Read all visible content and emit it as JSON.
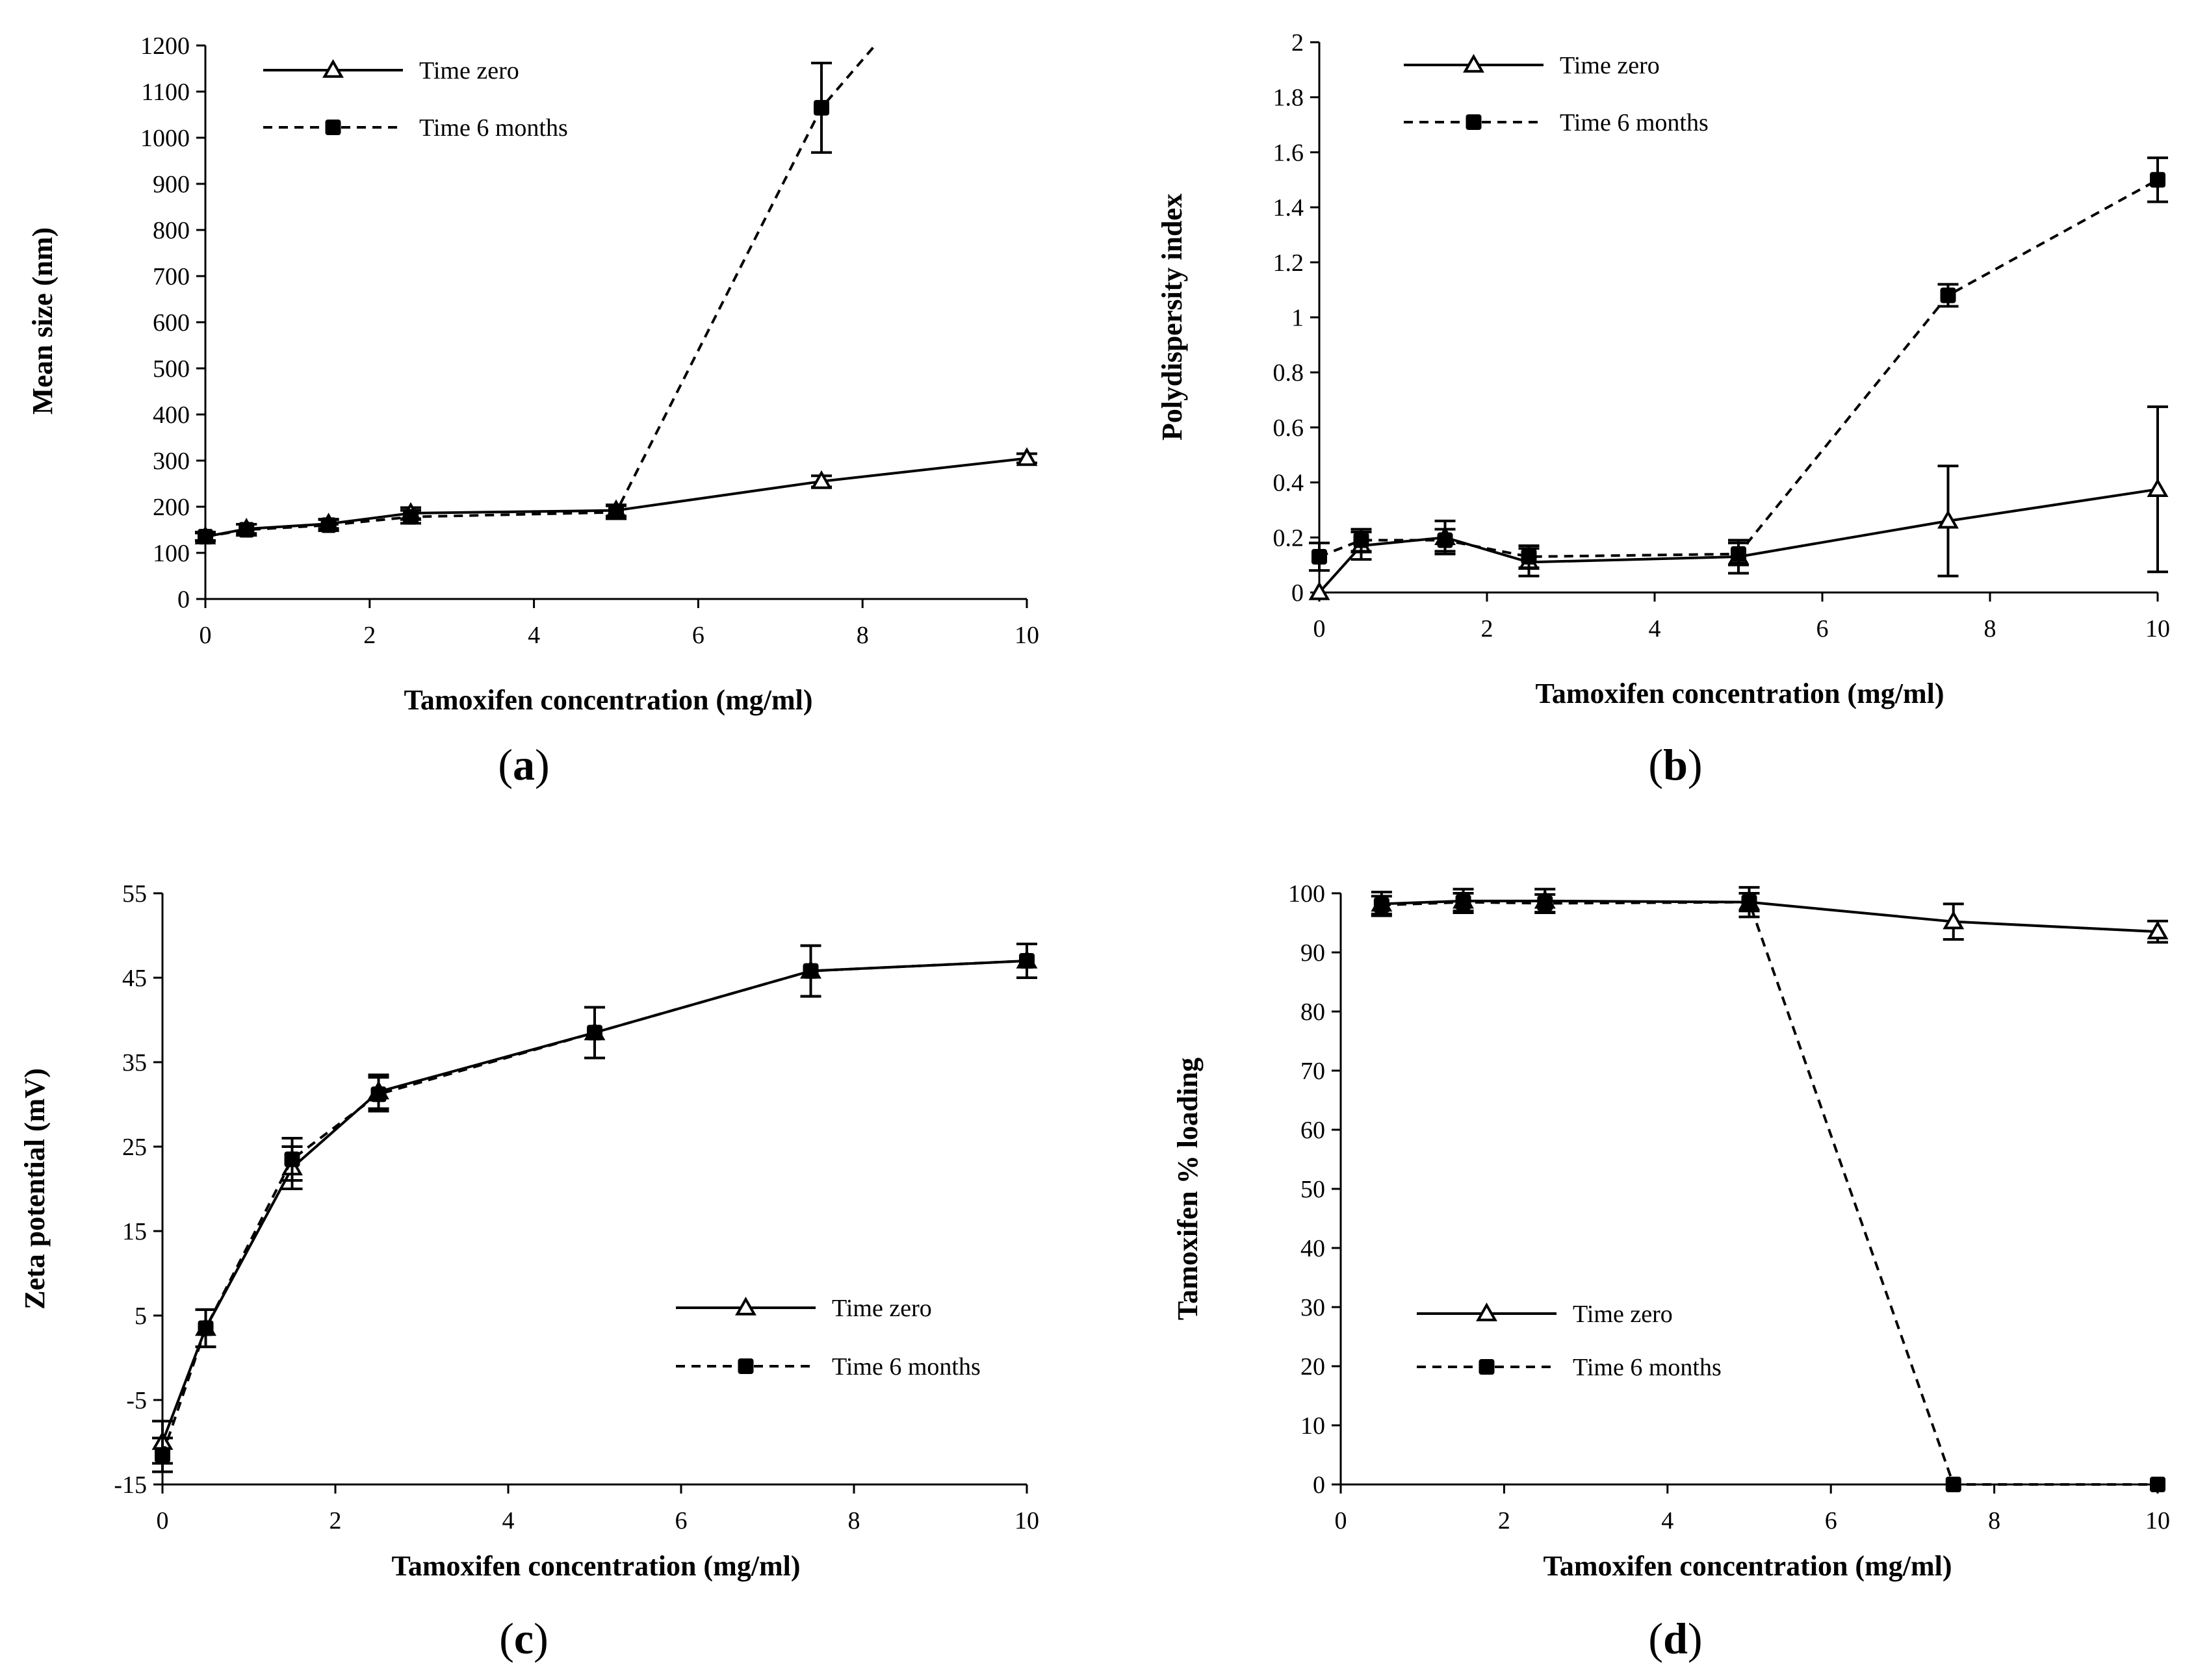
{
  "chart_data": [
    {
      "type": "line",
      "panel": "a",
      "panel_label": {
        "open": "(",
        "letter": "a",
        "close": ")"
      },
      "xlabel": "Tamoxifen concentration (mg/ml)",
      "ylabel": "Mean size (nm)",
      "xlim": [
        0,
        10
      ],
      "ylim": [
        0,
        1200
      ],
      "xticks": [
        0,
        2,
        4,
        6,
        8,
        10
      ],
      "yticks": [
        0,
        100,
        200,
        300,
        400,
        500,
        600,
        700,
        800,
        900,
        1000,
        1100,
        1200
      ],
      "legend_position": "top-left",
      "series": [
        {
          "name": "Time zero",
          "marker": "open-triangle",
          "line": "solid",
          "x": [
            0,
            0.5,
            1.5,
            2.5,
            5,
            7.5,
            10
          ],
          "values": [
            135,
            152,
            163,
            186,
            192,
            255,
            305
          ],
          "errors": [
            8,
            10,
            10,
            12,
            12,
            12,
            10
          ]
        },
        {
          "name": "Time 6 months",
          "marker": "filled-square",
          "line": "dashed",
          "x": [
            0,
            0.5,
            1.5,
            2.5,
            5,
            7.5,
            8.15
          ],
          "values": [
            135,
            150,
            160,
            178,
            188,
            1065,
            1200
          ],
          "errors": [
            10,
            12,
            12,
            14,
            14,
            97,
            0
          ]
        }
      ]
    },
    {
      "type": "line",
      "panel": "b",
      "panel_label": {
        "open": "(",
        "letter": "b",
        "close": ")"
      },
      "xlabel": "Tamoxifen concentration (mg/ml)",
      "ylabel": "Polydispersity index",
      "xlim": [
        0,
        10
      ],
      "ylim": [
        0,
        2
      ],
      "xticks": [
        0,
        2,
        4,
        6,
        8,
        10
      ],
      "yticks": [
        "0",
        "0.2",
        "0.4",
        "0.6",
        "0.8",
        "1",
        "1.2",
        "1.4",
        "1.6",
        "1.8",
        "2"
      ],
      "legend_position": "top-left",
      "series": [
        {
          "name": "Time zero",
          "marker": "open-triangle",
          "line": "solid",
          "x": [
            0,
            0.5,
            1.5,
            2.5,
            5,
            7.5,
            10
          ],
          "values": [
            0.0,
            0.17,
            0.2,
            0.11,
            0.13,
            0.26,
            0.375
          ],
          "errors": [
            0,
            0.05,
            0.06,
            0.05,
            0.06,
            0.2,
            0.3
          ]
        },
        {
          "name": "Time 6 months",
          "marker": "filled-square",
          "line": "dashed",
          "x": [
            0,
            0.5,
            1.5,
            2.5,
            5,
            7.5,
            10
          ],
          "values": [
            0.13,
            0.19,
            0.19,
            0.13,
            0.14,
            1.08,
            1.5
          ],
          "errors": [
            0.05,
            0.04,
            0.04,
            0.04,
            0.04,
            0.04,
            0.08
          ]
        }
      ]
    },
    {
      "type": "line",
      "panel": "c",
      "panel_label": {
        "open": "(",
        "letter": "c",
        "close": ")"
      },
      "xlabel": "Tamoxifen concentration (mg/ml)",
      "ylabel": "Zeta potential (mV)",
      "xlim": [
        0,
        10
      ],
      "ylim": [
        -15,
        55
      ],
      "xticks": [
        0,
        2,
        4,
        6,
        8,
        10
      ],
      "yticks": [
        -15,
        -5,
        5,
        15,
        25,
        35,
        45,
        55
      ],
      "legend_position": "center-right",
      "series": [
        {
          "name": "Time zero",
          "marker": "open-triangle",
          "line": "solid",
          "x": [
            0,
            0.5,
            1.5,
            2.5,
            5,
            7.5,
            10
          ],
          "values": [
            -10,
            3.5,
            22.5,
            31.5,
            38.5,
            45.8,
            47
          ],
          "errors": [
            2.5,
            2.2,
            2.5,
            2.0,
            3.0,
            3.0,
            2.0
          ]
        },
        {
          "name": "Time 6 months",
          "marker": "filled-square",
          "line": "dashed",
          "x": [
            0,
            0.5,
            1.5,
            2.5,
            5,
            7.5,
            10
          ],
          "values": [
            -11.5,
            3.5,
            23.5,
            31.2,
            38.5,
            45.8,
            47
          ],
          "errors": [
            2.0,
            2.2,
            2.5,
            2.0,
            3.0,
            3.0,
            2.0
          ]
        }
      ]
    },
    {
      "type": "line",
      "panel": "d",
      "panel_label": {
        "open": "(",
        "letter": "d",
        "close": ")"
      },
      "xlabel": "Tamoxifen concentration (mg/ml)",
      "ylabel": "Tamoxifen % loading",
      "xlim": [
        0,
        10
      ],
      "ylim": [
        0,
        100
      ],
      "xticks": [
        0,
        2,
        4,
        6,
        8,
        10
      ],
      "yticks": [
        0,
        10,
        20,
        30,
        40,
        50,
        60,
        70,
        80,
        90,
        100
      ],
      "legend_position": "center-left",
      "series": [
        {
          "name": "Time zero",
          "marker": "open-triangle",
          "line": "solid",
          "x": [
            0.5,
            1.5,
            2.5,
            5,
            7.5,
            10
          ],
          "values": [
            98.2,
            98.7,
            98.7,
            98.5,
            95.2,
            93.5
          ],
          "errors": [
            2.0,
            2.0,
            2.0,
            2.5,
            3.0,
            1.8
          ]
        },
        {
          "name": "Time 6 months",
          "marker": "filled-square",
          "line": "dashed",
          "x": [
            0.5,
            1.5,
            2.5,
            5,
            7.5,
            10
          ],
          "values": [
            98.0,
            98.5,
            98.3,
            98.5,
            0,
            0
          ],
          "errors": [
            1.5,
            1.5,
            1.5,
            1.5,
            0,
            0
          ]
        }
      ]
    }
  ]
}
